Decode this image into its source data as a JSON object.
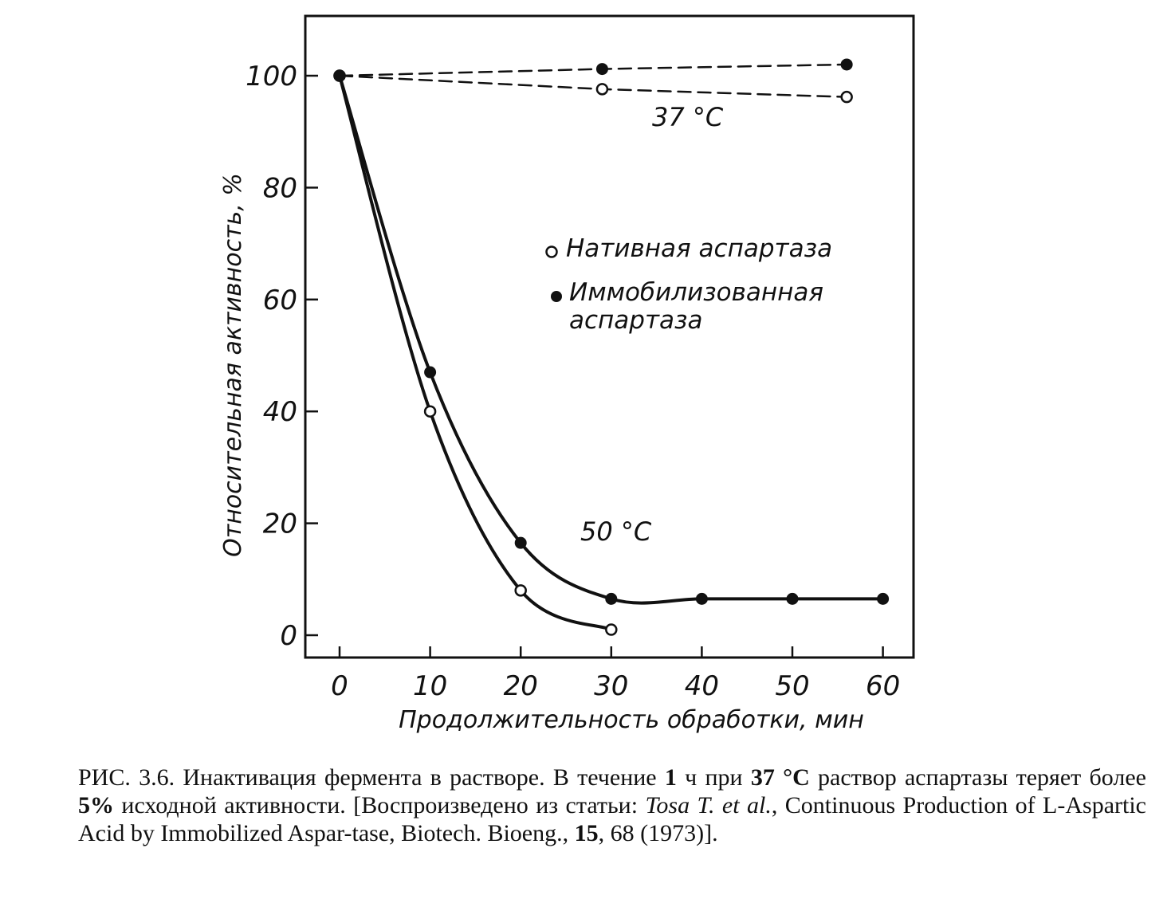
{
  "chart_data": {
    "type": "line",
    "xlabel": "Продолжительность обработки, мин",
    "ylabel": "Относительная активность, %",
    "x_ticks": [
      "0",
      "10",
      "20",
      "30",
      "40",
      "50",
      "60"
    ],
    "y_ticks": [
      "0",
      "20",
      "40",
      "60",
      "80",
      "100"
    ],
    "xlim": [
      -1.5,
      64
    ],
    "ylim": [
      -4,
      111
    ],
    "grid": false,
    "series": [
      {
        "name": "Нативная аспартаза",
        "group": "37 °C",
        "marker": "open",
        "line": "dashed",
        "x": [
          0,
          29,
          56
        ],
        "y": [
          100,
          97.6,
          96.2
        ]
      },
      {
        "name": "Иммобилизованная аспартаза",
        "group": "37 °C",
        "marker": "filled",
        "line": "dashed",
        "x": [
          0,
          29,
          56
        ],
        "y": [
          100,
          101.2,
          102
        ]
      },
      {
        "name": "Нативная аспартаза",
        "group": "50 °C",
        "marker": "open",
        "line": "solid",
        "x": [
          0,
          10,
          20,
          30
        ],
        "y": [
          100,
          40,
          8,
          1
        ]
      },
      {
        "name": "Иммобилизованная аспартаза",
        "group": "50 °C",
        "marker": "filled",
        "line": "solid",
        "x": [
          0,
          10,
          20,
          30,
          40,
          50,
          60
        ],
        "y": [
          100,
          47,
          16.5,
          6.5,
          6.5,
          6.5,
          6.5
        ]
      }
    ],
    "annotations": [
      "37 °C",
      "50 °C"
    ],
    "legend": {
      "placement": "center-right",
      "native": "Нативная аспартаза",
      "immob_line1": "Иммобилизованная",
      "immob_line2": "аспартаза"
    }
  },
  "caption": {
    "fig_label": "РИС. 3.6.",
    "text1": " Инактивация фермента в растворе. В течение ",
    "bold1": "1",
    "text2": " ч при ",
    "bold2": "37 °С",
    "text3": " раствор аспартазы теряет более ",
    "bold3": "5%",
    "text4": " исходной активности. [Воспроизведено из статьи: ",
    "authors": "Tosa T. et al.",
    "text5": ", Continuous Production of L-Aspartic Acid by Immobilized Aspar-tase, Biotech. Bioeng., ",
    "bold4": "15",
    "text6": ", 68 (1973)]."
  }
}
